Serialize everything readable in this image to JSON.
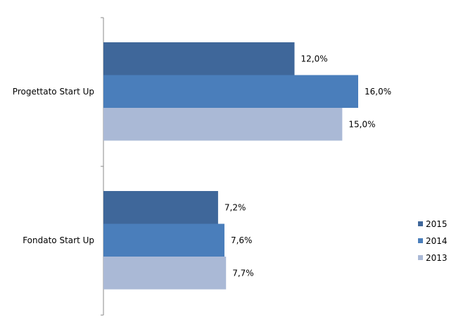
{
  "chart_data": {
    "type": "bar",
    "orientation": "horizontal",
    "categories": [
      "Progettato Start Up",
      "Fondato Start Up"
    ],
    "series": [
      {
        "name": "2015",
        "values": [
          12.0,
          7.2
        ],
        "labels": [
          "12,0%",
          "7,2%"
        ],
        "color": "#3f679a"
      },
      {
        "name": "2014",
        "values": [
          16.0,
          7.6
        ],
        "labels": [
          "16,0%",
          "7,6%"
        ],
        "color": "#4a7ebb"
      },
      {
        "name": "2013",
        "values": [
          15.0,
          7.7
        ],
        "labels": [
          "15,0%",
          "7,7%"
        ],
        "color": "#aab9d6"
      }
    ],
    "unit": "%",
    "xlim": [
      0,
      16.0
    ],
    "grid": false,
    "legend": "right"
  }
}
